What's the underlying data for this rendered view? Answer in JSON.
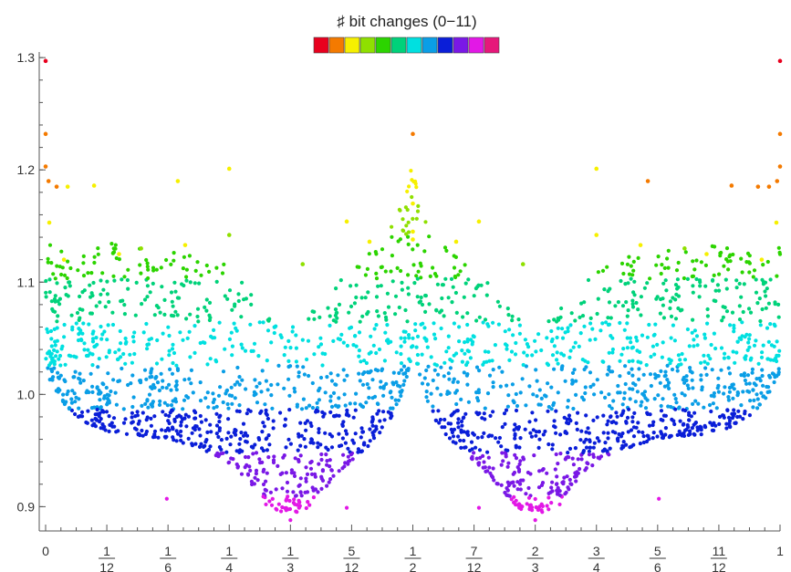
{
  "chart_data": {
    "type": "scatter",
    "title": "",
    "legend": {
      "title": "♯ bit changes (0−11)",
      "placement": "top-center",
      "colors": [
        "#e8001e",
        "#f47a00",
        "#f6f000",
        "#8fe000",
        "#2cd400",
        "#00d27a",
        "#00e0e0",
        "#0a9ee6",
        "#0a1ed8",
        "#7a18e6",
        "#e218e6",
        "#e6187a"
      ]
    },
    "xlabel": "",
    "ylabel": "",
    "xlim": [
      0,
      1
    ],
    "ylim": [
      0.88,
      1.305
    ],
    "x_ticks": [
      {
        "value": 0,
        "num": "0",
        "den": ""
      },
      {
        "value": 0.083333,
        "num": "1",
        "den": "12"
      },
      {
        "value": 0.166667,
        "num": "1",
        "den": "6"
      },
      {
        "value": 0.25,
        "num": "1",
        "den": "4"
      },
      {
        "value": 0.333333,
        "num": "1",
        "den": "3"
      },
      {
        "value": 0.416667,
        "num": "5",
        "den": "12"
      },
      {
        "value": 0.5,
        "num": "1",
        "den": "2"
      },
      {
        "value": 0.583333,
        "num": "7",
        "den": "12"
      },
      {
        "value": 0.666667,
        "num": "2",
        "den": "3"
      },
      {
        "value": 0.75,
        "num": "3",
        "den": "4"
      },
      {
        "value": 0.833333,
        "num": "5",
        "den": "6"
      },
      {
        "value": 0.916667,
        "num": "11",
        "den": "12"
      },
      {
        "value": 1,
        "num": "1",
        "den": ""
      }
    ],
    "y_ticks": [
      {
        "value": 0.9,
        "label": "0.9"
      },
      {
        "value": 1.0,
        "label": "1.0"
      },
      {
        "value": 1.1,
        "label": "1.1"
      },
      {
        "value": 1.2,
        "label": "1.2"
      },
      {
        "value": 1.3,
        "label": "1.3"
      }
    ],
    "points": [
      {
        "x": 0.0,
        "y": 1.297,
        "c": 0
      },
      {
        "x": 1.0,
        "y": 1.297,
        "c": 0
      },
      {
        "x": 0.5,
        "y": 1.232,
        "c": 1
      },
      {
        "x": 0.0,
        "y": 1.232,
        "c": 1
      },
      {
        "x": 1.0,
        "y": 1.232,
        "c": 1
      },
      {
        "x": 0.0,
        "y": 1.203,
        "c": 1
      },
      {
        "x": 1.0,
        "y": 1.203,
        "c": 1
      },
      {
        "x": 0.25,
        "y": 1.201,
        "c": 2
      },
      {
        "x": 0.75,
        "y": 1.201,
        "c": 2
      },
      {
        "x": 0.004,
        "y": 1.19,
        "c": 1
      },
      {
        "x": 0.996,
        "y": 1.19,
        "c": 1
      },
      {
        "x": 0.18,
        "y": 1.19,
        "c": 2
      },
      {
        "x": 0.82,
        "y": 1.19,
        "c": 1
      },
      {
        "x": 0.066,
        "y": 1.186,
        "c": 2
      },
      {
        "x": 0.934,
        "y": 1.186,
        "c": 1
      },
      {
        "x": 0.015,
        "y": 1.185,
        "c": 1
      },
      {
        "x": 0.985,
        "y": 1.185,
        "c": 1
      },
      {
        "x": 0.03,
        "y": 1.185,
        "c": 2
      },
      {
        "x": 0.97,
        "y": 1.185,
        "c": 1
      },
      {
        "x": 0.5,
        "y": 1.17,
        "c": 2
      },
      {
        "x": 0.41,
        "y": 1.154,
        "c": 2
      },
      {
        "x": 0.59,
        "y": 1.154,
        "c": 2
      },
      {
        "x": 0.005,
        "y": 1.153,
        "c": 2
      },
      {
        "x": 0.995,
        "y": 1.153,
        "c": 2
      },
      {
        "x": 0.5,
        "y": 1.145,
        "c": 2
      },
      {
        "x": 0.5,
        "y": 1.138,
        "c": 2
      },
      {
        "x": 0.75,
        "y": 1.142,
        "c": 2
      },
      {
        "x": 0.25,
        "y": 1.142,
        "c": 3
      },
      {
        "x": 0.19,
        "y": 1.133,
        "c": 2
      },
      {
        "x": 0.81,
        "y": 1.133,
        "c": 2
      },
      {
        "x": 0.441,
        "y": 1.136,
        "c": 2
      },
      {
        "x": 0.559,
        "y": 1.136,
        "c": 2
      },
      {
        "x": 0.35,
        "y": 1.116,
        "c": 3
      },
      {
        "x": 0.65,
        "y": 1.116,
        "c": 3
      },
      {
        "x": 0.025,
        "y": 1.12,
        "c": 2
      },
      {
        "x": 0.975,
        "y": 1.12,
        "c": 2
      },
      {
        "x": 0.1,
        "y": 1.125,
        "c": 2
      },
      {
        "x": 0.9,
        "y": 1.125,
        "c": 2
      },
      {
        "x": 0.13,
        "y": 1.13,
        "c": 3
      },
      {
        "x": 0.87,
        "y": 1.13,
        "c": 3
      }
    ]
  }
}
